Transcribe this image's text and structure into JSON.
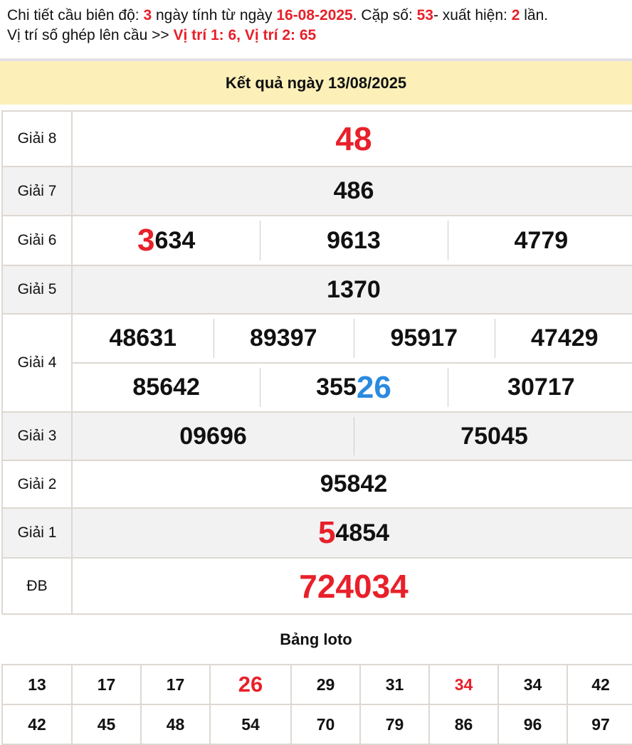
{
  "intro": {
    "l1_a": "Chi tiết cầu biên độ: ",
    "days": "3",
    "l1_b": " ngày tính từ ngày ",
    "date": "16-08-2025",
    "l1_c": ". Cặp số: ",
    "pair": "53",
    "l1_d": "- xuất hiện: ",
    "count": "2",
    "l1_e": " lần.",
    "l2_a": "Vị trí số ghép lên cầu >> ",
    "positions": "Vị trí 1: 6, Vị trí 2: 65"
  },
  "header": {
    "title": "Kết quả ngày 13/08/2025"
  },
  "colors": {
    "highlight_red": "#e8202a",
    "highlight_blue": "#2b8ae0",
    "header_bg": "#fcf0b8"
  },
  "results": {
    "g8": {
      "label": "Giải 8",
      "v": "48"
    },
    "g7": {
      "label": "Giải 7",
      "v": "486"
    },
    "g6": {
      "label": "Giải 6",
      "v1a": "3",
      "v1b": "634",
      "v2": "9613",
      "v3": "4779"
    },
    "g5": {
      "label": "Giải 5",
      "v": "1370"
    },
    "g4": {
      "label": "Giải 4",
      "v": [
        "48631",
        "89397",
        "95917",
        "47429",
        "85642"
      ],
      "v6a": "355",
      "v6b": "26",
      "v7": "30717"
    },
    "g3": {
      "label": "Giải 3",
      "v": [
        "09696",
        "75045"
      ]
    },
    "g2": {
      "label": "Giải 2",
      "v": "95842"
    },
    "g1": {
      "label": "Giải 1",
      "va": "5",
      "vb": "4854"
    },
    "db": {
      "label": "ĐB",
      "v": "724034"
    }
  },
  "loto": {
    "title": "Bảng loto",
    "row1": [
      "13",
      "17",
      "17",
      "26",
      "29",
      "31",
      "34",
      "34",
      "42"
    ],
    "row2": [
      "42",
      "45",
      "48",
      "54",
      "70",
      "79",
      "86",
      "96",
      "97"
    ],
    "highlighted": [
      "26",
      "34"
    ]
  }
}
